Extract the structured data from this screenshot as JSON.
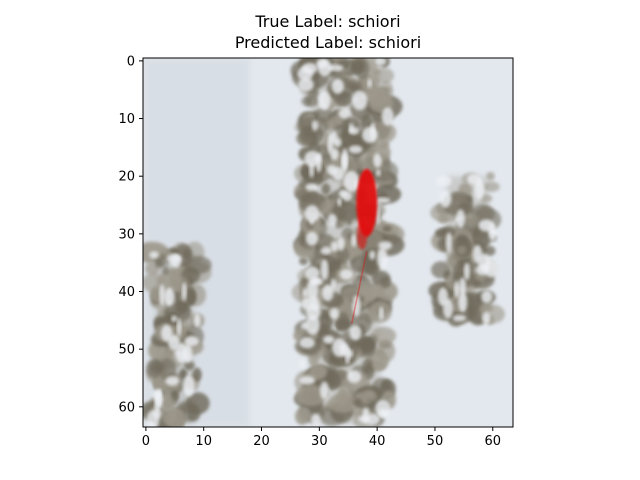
{
  "figure": {
    "title_lines": [
      "True Label: schiori",
      "Predicted Label: schiori"
    ]
  },
  "chart_data": {
    "type": "heatmap",
    "title": "True Label: schiori\nPredicted Label: schiori",
    "xlabel": "",
    "ylabel": "",
    "image_size": [
      64,
      64
    ],
    "xlim": [
      -0.5,
      63.5
    ],
    "ylim": [
      63.5,
      -0.5
    ],
    "x_ticks": [
      0,
      10,
      20,
      30,
      40,
      50,
      60
    ],
    "y_ticks": [
      0,
      10,
      20,
      30,
      40,
      50,
      60
    ],
    "grid": false,
    "background_color": "#e3e8ee",
    "colors": {
      "snow": "#e3e8ee",
      "shadow": "#cfd6dd",
      "rock_dark": "#6f6a5c",
      "rock_mid": "#9c978a",
      "highlight": "#e01010"
    },
    "regions": [
      {
        "kind": "rock",
        "name": "central rock column",
        "x": [
          27,
          42
        ],
        "y": [
          0,
          63
        ]
      },
      {
        "kind": "rock",
        "name": "right rock outcrop",
        "x": [
          51,
          60
        ],
        "y": [
          20,
          45
        ]
      },
      {
        "kind": "rock",
        "name": "left tree cluster",
        "x": [
          1,
          9
        ],
        "y": [
          33,
          63
        ]
      },
      {
        "kind": "highlight",
        "name": "red attention region",
        "x": [
          36,
          40
        ],
        "y": [
          19,
          33
        ]
      }
    ]
  }
}
